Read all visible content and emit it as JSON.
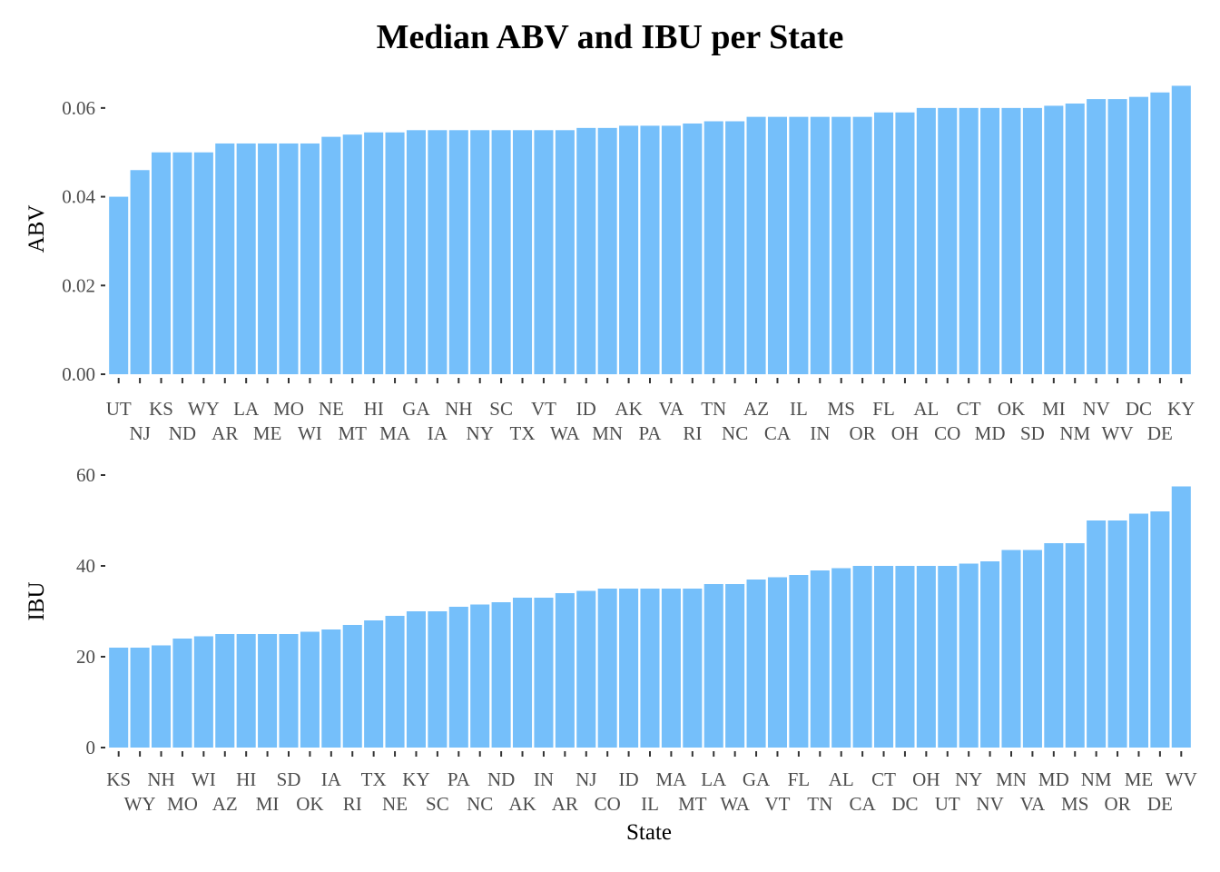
{
  "title": "Median ABV and IBU per State",
  "bar_color": "#75bffa",
  "tick_color": "#333333",
  "chart_data": [
    {
      "type": "bar",
      "id": "abv",
      "ylabel": "ABV",
      "xlabel": "",
      "ylim": [
        0,
        0.0655
      ],
      "yticks": [
        0,
        0.02,
        0.04,
        0.06
      ],
      "ytick_labels": [
        "0.00",
        "0.02",
        "0.04",
        "0.06"
      ],
      "categories": [
        "UT",
        "NJ",
        "KS",
        "ND",
        "WY",
        "AR",
        "LA",
        "ME",
        "MO",
        "WI",
        "NE",
        "MT",
        "HI",
        "MA",
        "GA",
        "IA",
        "NH",
        "NY",
        "SC",
        "TX",
        "VT",
        "WA",
        "ID",
        "MN",
        "AK",
        "PA",
        "VA",
        "RI",
        "TN",
        "NC",
        "AZ",
        "CA",
        "IL",
        "IN",
        "MS",
        "OR",
        "FL",
        "OH",
        "AL",
        "CO",
        "CT",
        "MD",
        "OK",
        "SD",
        "MI",
        "NM",
        "NV",
        "WV",
        "DC",
        "DE",
        "KY"
      ],
      "values": [
        0.04,
        0.046,
        0.05,
        0.05,
        0.05,
        0.052,
        0.052,
        0.052,
        0.052,
        0.052,
        0.0535,
        0.054,
        0.0545,
        0.0545,
        0.055,
        0.055,
        0.055,
        0.055,
        0.055,
        0.055,
        0.055,
        0.055,
        0.0555,
        0.0555,
        0.056,
        0.056,
        0.056,
        0.0565,
        0.057,
        0.057,
        0.058,
        0.058,
        0.058,
        0.058,
        0.058,
        0.058,
        0.059,
        0.059,
        0.06,
        0.06,
        0.06,
        0.06,
        0.06,
        0.06,
        0.0605,
        0.061,
        0.062,
        0.062,
        0.0625,
        0.0635,
        0.065
      ]
    },
    {
      "type": "bar",
      "id": "ibu",
      "ylabel": "IBU",
      "xlabel": "State",
      "ylim": [
        0,
        58
      ],
      "yticks": [
        0,
        20,
        40,
        60
      ],
      "ytick_labels": [
        "0",
        "20",
        "40",
        "60"
      ],
      "categories": [
        "KS",
        "WY",
        "NH",
        "MO",
        "WI",
        "AZ",
        "HI",
        "MI",
        "SD",
        "OK",
        "IA",
        "RI",
        "TX",
        "NE",
        "KY",
        "SC",
        "PA",
        "NC",
        "ND",
        "AK",
        "IN",
        "AR",
        "NJ",
        "CO",
        "ID",
        "IL",
        "MA",
        "MT",
        "LA",
        "WA",
        "GA",
        "VT",
        "FL",
        "TN",
        "AL",
        "CA",
        "CT",
        "DC",
        "OH",
        "UT",
        "NY",
        "NV",
        "MN",
        "VA",
        "MD",
        "MS",
        "NM",
        "OR",
        "ME",
        "DE",
        "WV"
      ],
      "values": [
        22,
        22,
        22.5,
        24,
        24.5,
        25,
        25,
        25,
        25,
        25.5,
        26,
        27,
        28,
        29,
        30,
        30,
        31,
        31.5,
        32,
        33,
        33,
        34,
        34.5,
        35,
        35,
        35,
        35,
        35,
        36,
        36,
        37,
        37.5,
        38,
        39,
        39.5,
        40,
        40,
        40,
        40,
        40,
        40.5,
        41,
        43.5,
        43.5,
        45,
        45,
        50,
        50,
        51.5,
        52,
        57.5
      ]
    }
  ]
}
